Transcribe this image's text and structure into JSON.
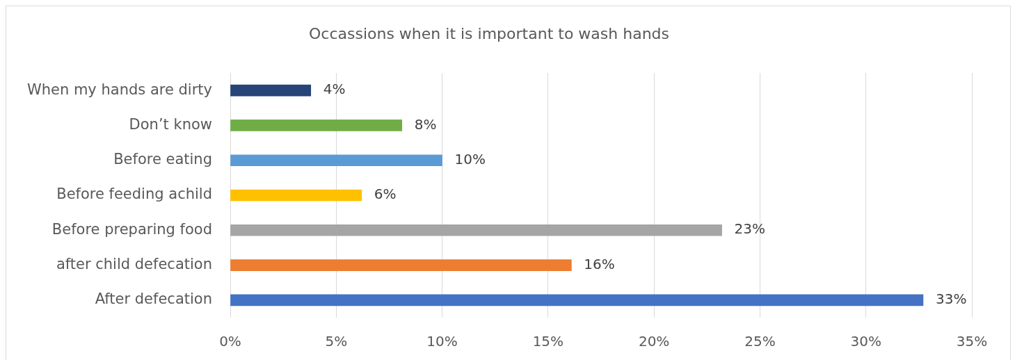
{
  "chart_data": {
    "type": "bar",
    "orientation": "horizontal",
    "title": "Occassions when it is important to wash hands",
    "categories": [
      "When my hands are dirty",
      "Don’t know",
      "Before eating",
      "Before feeding achild",
      "Before preparing food",
      "after child defecation",
      "After defecation"
    ],
    "values": [
      3.8,
      8.1,
      10,
      6.2,
      23.2,
      16.1,
      32.7
    ],
    "colors": [
      "#264478",
      "#70ad47",
      "#5b9bd5",
      "#ffc000",
      "#a5a5a5",
      "#ed7d31",
      "#4472c4"
    ],
    "value_labels": [
      "4%",
      "8%",
      "10%",
      "6%",
      "23%",
      "16%",
      "33%"
    ],
    "xlim": [
      0,
      35
    ],
    "xticks": [
      {
        "value": 0,
        "label": "0%"
      },
      {
        "value": 5,
        "label": "5%"
      },
      {
        "value": 10,
        "label": "10%"
      },
      {
        "value": 15,
        "label": "15%"
      },
      {
        "value": 20,
        "label": "20%"
      },
      {
        "value": 25,
        "label": "25%"
      },
      {
        "value": 30,
        "label": "30%"
      },
      {
        "value": 35,
        "label": "35%"
      }
    ],
    "grid": "x"
  }
}
